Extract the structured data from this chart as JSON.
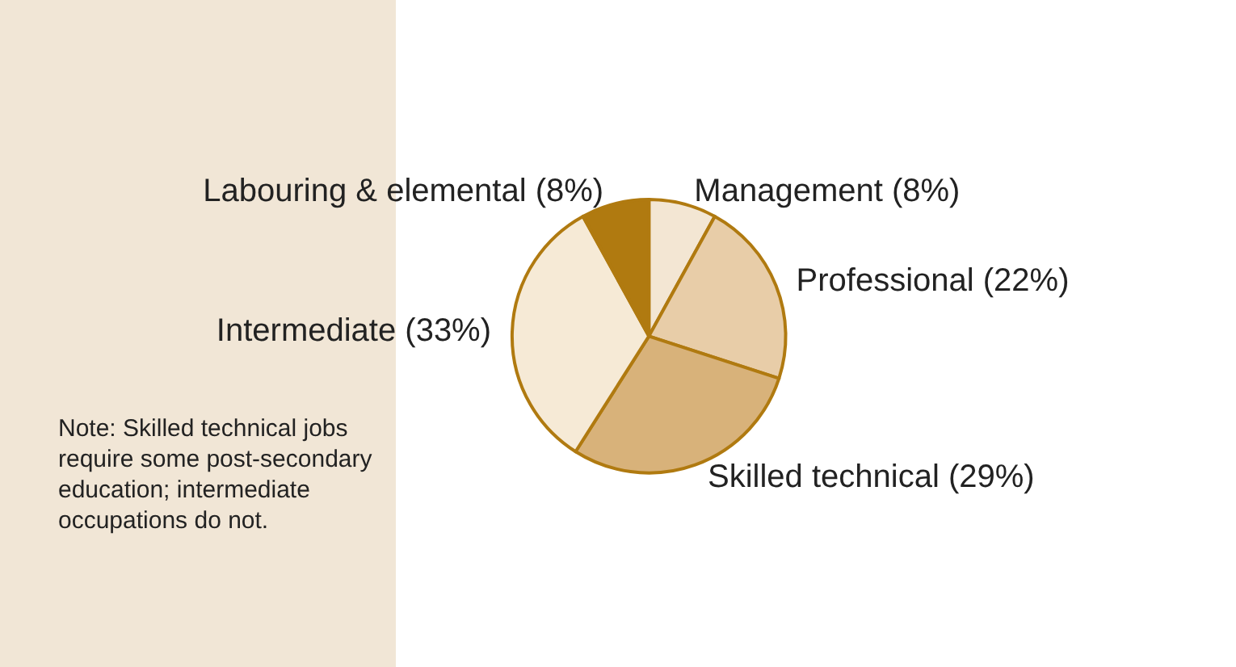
{
  "chart_data": {
    "type": "pie",
    "categories": [
      "Management",
      "Professional",
      "Skilled technical",
      "Intermediate",
      "Labouring & elemental"
    ],
    "values": [
      8,
      22,
      29,
      33,
      8
    ],
    "value_labels": [
      "(8%)",
      "(22%)",
      "(29%)",
      "(33%)",
      "(8%)"
    ],
    "colors": [
      "#f3e6d3",
      "#e8cda8",
      "#d8b27a",
      "#f6ead6",
      "#b07a10"
    ],
    "annotations": [
      "Note: Skilled technical jobs require some post-secondary education; intermediate occupations do not."
    ]
  }
}
